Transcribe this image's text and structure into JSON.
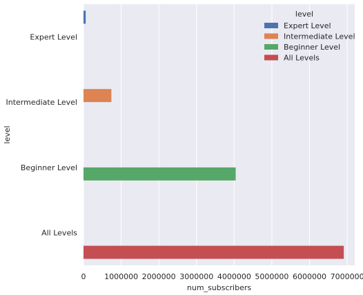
{
  "chart_data": {
    "type": "bar",
    "orientation": "horizontal",
    "categories": [
      "Expert Level",
      "Intermediate Level",
      "Beginner Level",
      "All Levels"
    ],
    "series": [
      {
        "name": "Expert Level",
        "values": [
          58000,
          null,
          null,
          null
        ],
        "color": "#4c72b0"
      },
      {
        "name": "Intermediate Level",
        "values": [
          null,
          740000,
          null,
          null
        ],
        "color": "#dd8452"
      },
      {
        "name": "Beginner Level",
        "values": [
          null,
          null,
          4040000,
          null
        ],
        "color": "#55a868"
      },
      {
        "name": "All Levels",
        "values": [
          null,
          null,
          null,
          6910000
        ],
        "color": "#c44e52"
      }
    ],
    "xlabel": "num_subscribers",
    "ylabel": "level",
    "xlim": [
      0,
      7200000
    ],
    "xticks": [
      0,
      1000000,
      2000000,
      3000000,
      4000000,
      5000000,
      6000000,
      7000000
    ],
    "grid": true,
    "legend": {
      "title": "level",
      "placement": "top-right"
    },
    "background_color": "#eaeaf2"
  }
}
